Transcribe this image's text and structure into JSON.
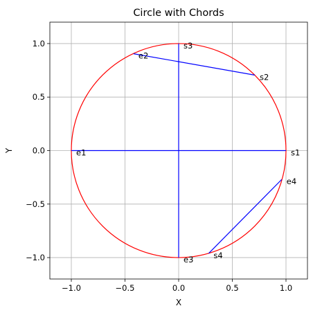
{
  "chart_data": {
    "type": "line",
    "title": "Circle with Chords",
    "xlabel": "X",
    "ylabel": "Y",
    "xlim": [
      -1.2,
      1.2
    ],
    "ylim": [
      -1.2,
      1.2
    ],
    "grid": true,
    "xticks": [
      -1.0,
      -0.5,
      0.0,
      0.5,
      1.0
    ],
    "yticks": [
      -1.0,
      -0.5,
      0.0,
      0.5,
      1.0
    ],
    "xtick_labels": [
      "−1.0",
      "−0.5",
      "0.0",
      "0.5",
      "1.0"
    ],
    "ytick_labels": [
      "−1.0",
      "−0.5",
      "0.0",
      "0.5",
      "1.0"
    ],
    "circle": {
      "center": [
        0,
        0
      ],
      "radius": 1,
      "color": "#ff0000"
    },
    "chord_color": "#0000ff",
    "chords": [
      {
        "start": {
          "label": "s1",
          "x": 1.0,
          "y": 0.0
        },
        "end": {
          "label": "e1",
          "x": -1.0,
          "y": 0.0
        }
      },
      {
        "start": {
          "label": "s2",
          "x": 0.71,
          "y": 0.705
        },
        "end": {
          "label": "e2",
          "x": -0.42,
          "y": 0.905
        }
      },
      {
        "start": {
          "label": "s3",
          "x": 0.0,
          "y": 1.0
        },
        "end": {
          "label": "e3",
          "x": 0.0,
          "y": -1.0
        }
      },
      {
        "start": {
          "label": "s4",
          "x": 0.28,
          "y": -0.96
        },
        "end": {
          "label": "e4",
          "x": 0.96,
          "y": -0.27
        }
      }
    ]
  }
}
